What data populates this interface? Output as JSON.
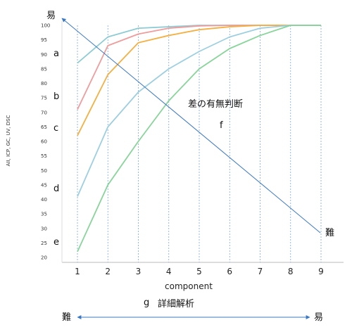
{
  "chart_data": {
    "type": "line",
    "xlabel": "component",
    "ylabel": "AII, ICP, GC, UV, DSC",
    "x": [
      1,
      2,
      3,
      4,
      5,
      6,
      7,
      8,
      9
    ],
    "ylim": [
      20,
      100
    ],
    "yticks": [
      20,
      25,
      30,
      35,
      40,
      45,
      50,
      55,
      60,
      65,
      70,
      75,
      80,
      85,
      90,
      95,
      100
    ],
    "grid": "vertical dashed at each x",
    "series": [
      {
        "color": "#8ecbd3",
        "values": [
          87,
          96,
          99,
          99.5,
          100,
          100,
          100,
          100,
          100
        ]
      },
      {
        "color": "#ef9c9c",
        "values": [
          71,
          93,
          97,
          99,
          99.8,
          100,
          100,
          100,
          100
        ]
      },
      {
        "color": "#f4b043",
        "values": [
          62,
          83,
          94,
          96.5,
          98.5,
          99.5,
          100,
          100,
          100
        ]
      },
      {
        "color": "#9ecfe0",
        "values": [
          41,
          65,
          77,
          85,
          91,
          96,
          99,
          100,
          100
        ]
      },
      {
        "color": "#88d49a",
        "values": [
          22,
          45,
          60,
          74,
          85,
          92,
          96.5,
          100,
          100
        ]
      }
    ],
    "series_letters": [
      "a",
      "b",
      "c",
      "d",
      "e"
    ],
    "annotations": {
      "easy_top": "易",
      "hard_right": "難",
      "diff_text": "差の有無判断",
      "f_label": "f",
      "g_label": "g",
      "detail_text": "詳細解析",
      "bottom_left": "難",
      "bottom_right": "易"
    }
  }
}
